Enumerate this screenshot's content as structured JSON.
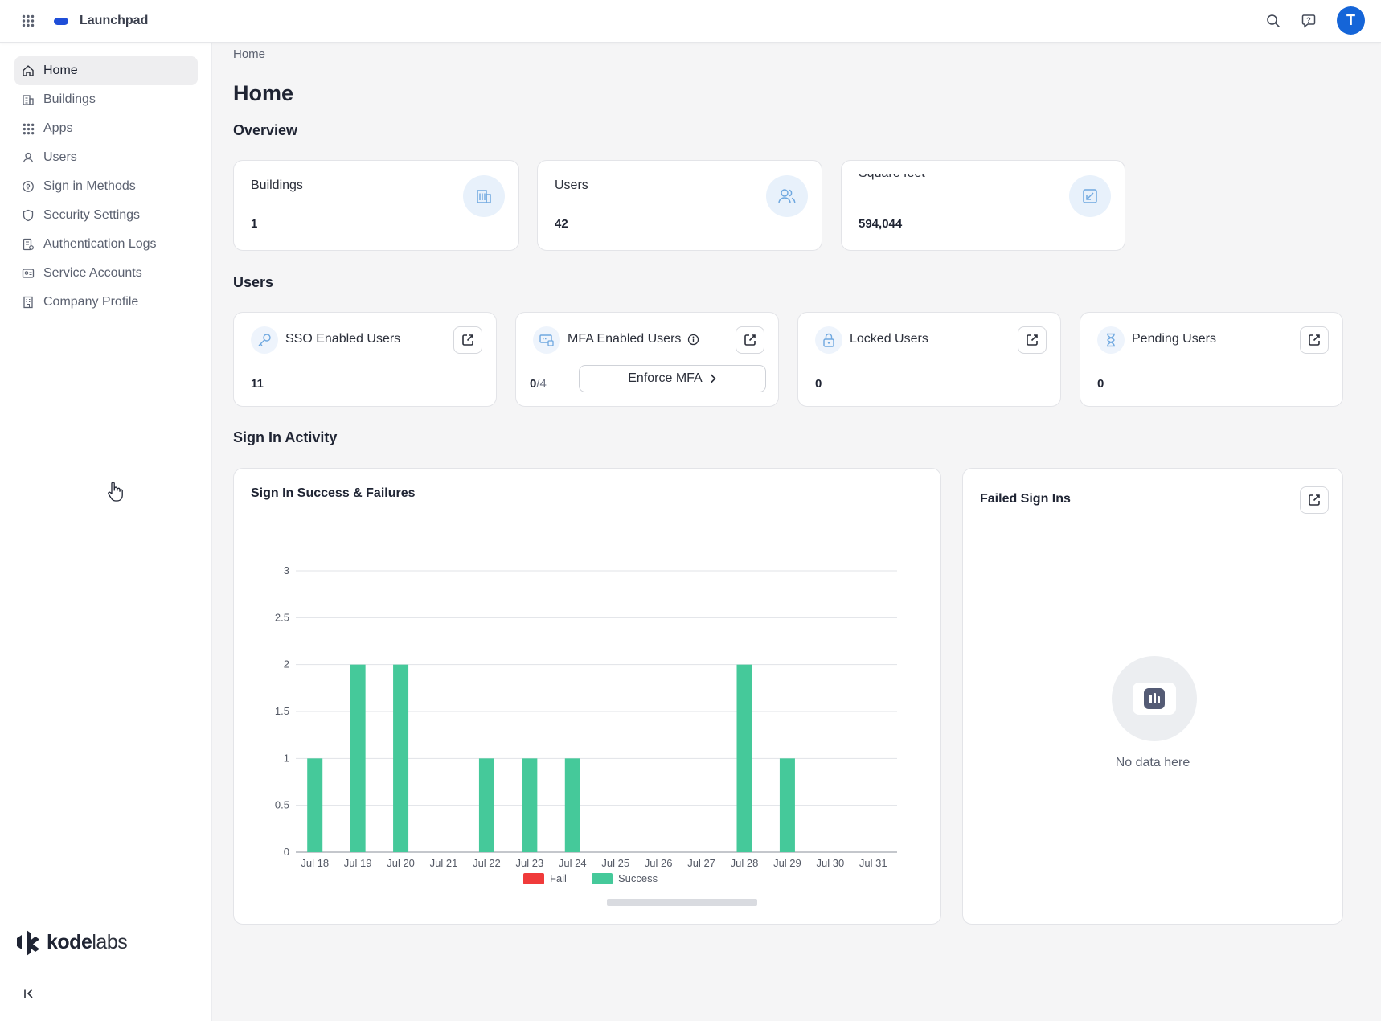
{
  "app": {
    "name": "Launchpad",
    "user_initial": "T"
  },
  "sidebar": {
    "items": [
      {
        "label": "Home",
        "icon": "home-icon",
        "active": true
      },
      {
        "label": "Buildings",
        "icon": "building-icon"
      },
      {
        "label": "Apps",
        "icon": "apps-grid-icon"
      },
      {
        "label": "Users",
        "icon": "user-icon"
      },
      {
        "label": "Sign in Methods",
        "icon": "sign-in-method-icon"
      },
      {
        "label": "Security Settings",
        "icon": "shield-icon"
      },
      {
        "label": "Authentication Logs",
        "icon": "log-icon"
      },
      {
        "label": "Service Accounts",
        "icon": "service-account-icon"
      },
      {
        "label": "Company Profile",
        "icon": "company-icon"
      }
    ],
    "logo": {
      "bold": "kode",
      "rest": "labs"
    }
  },
  "breadcrumb": "Home",
  "page_title": "Home",
  "overview": {
    "title": "Overview",
    "cards": [
      {
        "label": "Buildings",
        "value": "1",
        "icon": "building-icon"
      },
      {
        "label": "Users",
        "value": "42",
        "icon": "users-icon"
      },
      {
        "label": "Square feet",
        "value": "594,044",
        "icon": "resize-icon"
      }
    ]
  },
  "users_section": {
    "title": "Users",
    "sso": {
      "label": "SSO Enabled Users",
      "value": "11"
    },
    "mfa": {
      "label": "MFA Enabled Users",
      "numerator": "0",
      "denominator": "/4",
      "button": "Enforce MFA"
    },
    "locked": {
      "label": "Locked Users",
      "value": "0"
    },
    "pending": {
      "label": "Pending Users",
      "value": "0"
    }
  },
  "sign_in_activity": {
    "title": "Sign In Activity",
    "chart_title": "Sign In Success & Failures",
    "failed_title": "Failed Sign Ins",
    "empty_text": "No data here"
  },
  "chart_data": {
    "type": "bar",
    "title": "Sign In Success & Failures",
    "categories": [
      "Jul 18",
      "Jul 19",
      "Jul 20",
      "Jul 21",
      "Jul 22",
      "Jul 23",
      "Jul 24",
      "Jul 25",
      "Jul 26",
      "Jul 27",
      "Jul 28",
      "Jul 29",
      "Jul 30",
      "Jul 31"
    ],
    "series": [
      {
        "name": "Fail",
        "color": "#f03a3a",
        "values": [
          0,
          0,
          0,
          0,
          0,
          0,
          0,
          0,
          0,
          0,
          0,
          0,
          0,
          0
        ]
      },
      {
        "name": "Success",
        "color": "#45c99a",
        "values": [
          1,
          2,
          2,
          0,
          1,
          1,
          1,
          0,
          0,
          0,
          2,
          1,
          0,
          0
        ]
      }
    ],
    "yticks": [
      "0",
      "0.5",
      "1",
      "1.5",
      "2",
      "2.5",
      "3"
    ],
    "ylim": [
      0,
      3
    ],
    "legend": "bottom",
    "grid": true
  }
}
